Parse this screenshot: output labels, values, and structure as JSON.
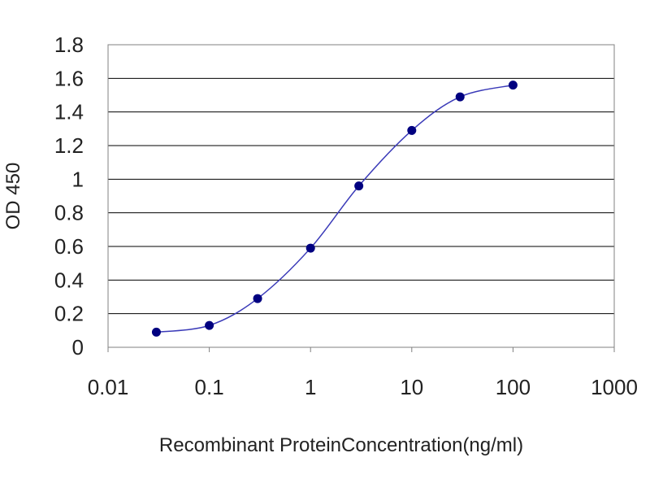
{
  "chart_data": {
    "type": "line",
    "xscale": "log",
    "x": [
      0.03,
      0.1,
      0.3,
      1,
      3,
      10,
      30,
      100
    ],
    "series": [
      {
        "values": [
          0.09,
          0.13,
          0.29,
          0.59,
          0.96,
          1.29,
          1.49,
          1.56
        ]
      }
    ],
    "xlabel": "Recombinant ProteinConcentration(ng/ml)",
    "ylabel": "OD 450",
    "xlim": [
      0.01,
      1000
    ],
    "ylim": [
      0,
      1.8
    ],
    "xticks": [
      "0.01",
      "0.1",
      "1",
      "10",
      "100",
      "1000"
    ],
    "yticks": [
      "0",
      "0.2",
      "0.4",
      "0.6",
      "0.8",
      "1",
      "1.2",
      "1.4",
      "1.6",
      "1.8"
    ],
    "grid": "horizontal",
    "legend": "none",
    "colors": {
      "line": "#3a3ab8",
      "marker": "#000080",
      "grid": "#000000",
      "frame": "#808080"
    }
  }
}
